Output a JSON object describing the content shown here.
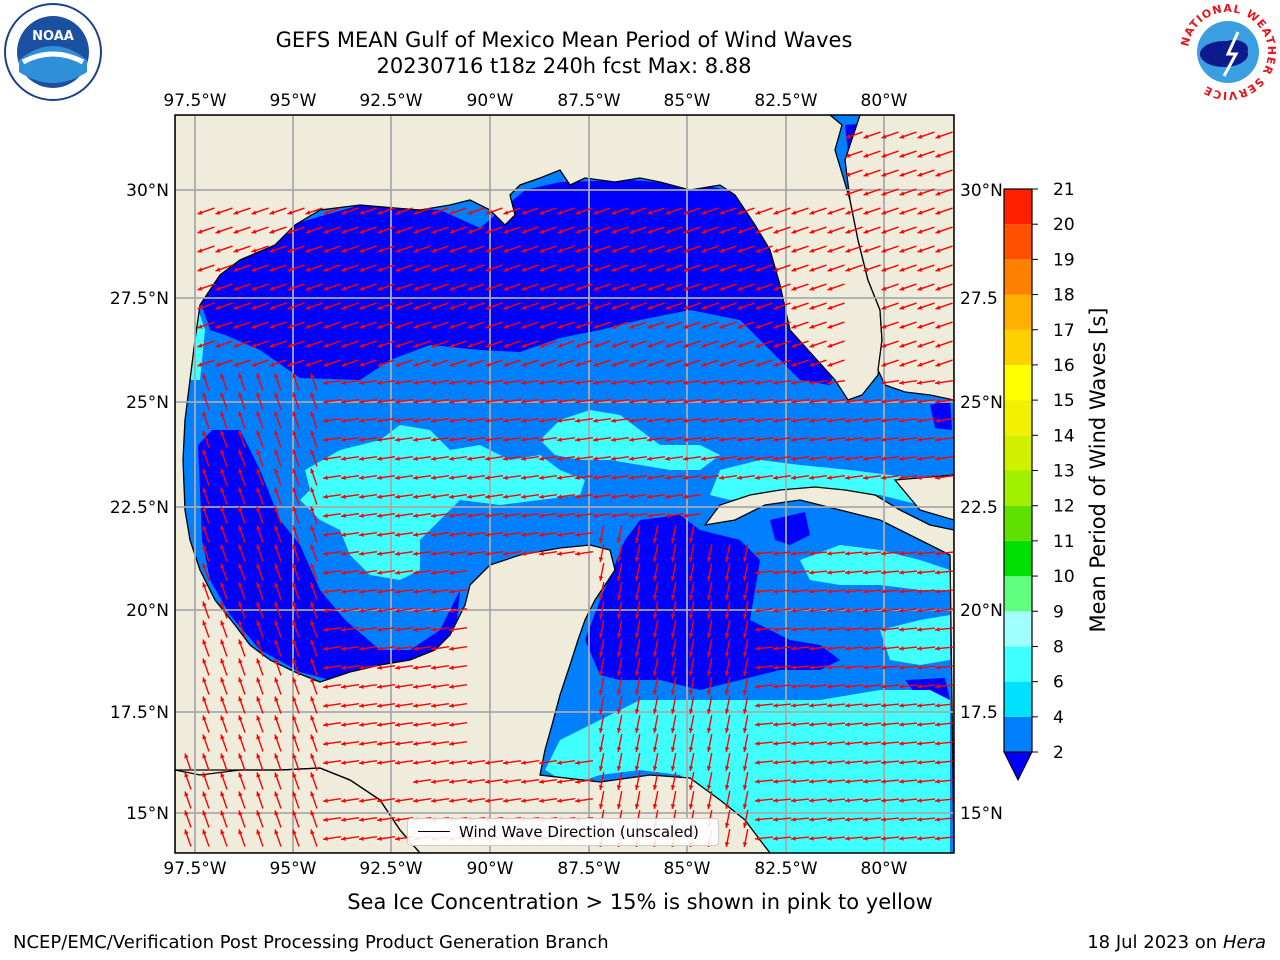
{
  "title": {
    "line1": "GEFS MEAN Gulf of Mexico Mean Period of Wind Waves",
    "line2": "20230716 t18z 240h fcst   Max: 8.88"
  },
  "map": {
    "lon_ticks": [
      "97.5°W",
      "95°W",
      "92.5°W",
      "90°W",
      "87.5°W",
      "85°W",
      "82.5°W",
      "80°W"
    ],
    "lat_ticks_left": [
      "30°N",
      "27.5°N",
      "25°N",
      "22.5°N",
      "20°N",
      "17.5°N",
      "15°N"
    ],
    "lat_ticks_right": [
      "30°N",
      "27.5",
      "25°N",
      "22.5",
      "20°N",
      "17.5",
      "15°N"
    ],
    "land_color": "#efecdc",
    "arrow_color": "#ff0000",
    "legend_text": "Wind Wave Direction (unscaled)"
  },
  "colorbar": {
    "label": "Mean Period of Wind Waves [s]",
    "ticks": [
      "2",
      "4",
      "6",
      "8",
      "9",
      "10",
      "11",
      "12",
      "13",
      "14",
      "15",
      "16",
      "17",
      "18",
      "19",
      "20",
      "21"
    ],
    "colors": [
      "#0080ff",
      "#00e0ff",
      "#40ffff",
      "#a0ffff",
      "#60ff80",
      "#00e000",
      "#60e000",
      "#a0f000",
      "#d0f000",
      "#f0f000",
      "#ffff00",
      "#ffd000",
      "#ffb000",
      "#ff8000",
      "#ff5000",
      "#ff2000"
    ],
    "extend_color": "#0000ff"
  },
  "footer": {
    "note": "Sea Ice Concentration > 15% is shown in pink to yellow",
    "credit": "NCEP/EMC/Verification Post Processing Product Generation Branch",
    "date": "18 Jul 2023 on ",
    "machine": "Hera"
  },
  "logos": {
    "noaa": "NOAA",
    "nws_ring": "NATIONAL WEATHER SERVICE"
  }
}
